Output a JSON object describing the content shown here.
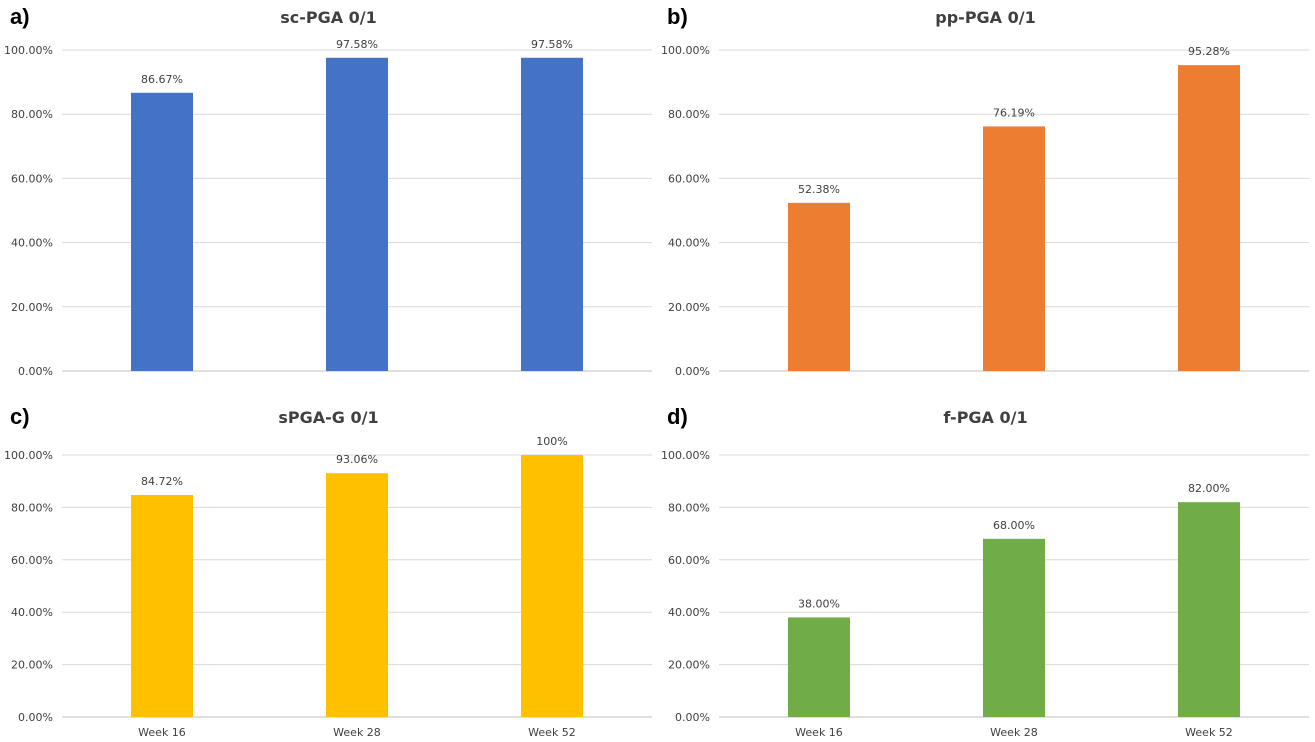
{
  "chart_data": [
    {
      "type": "bar",
      "panel_label": "a)",
      "title": "sc-PGA 0/1",
      "categories": [
        "Week 16",
        "Week 28",
        "Week 52"
      ],
      "values": [
        86.67,
        97.58,
        97.58
      ],
      "value_labels": [
        "86.67%",
        "97.58%",
        "97.58%"
      ],
      "yticks": [
        "0.00%",
        "20.00%",
        "40.00%",
        "60.00%",
        "80.00%",
        "100.00%"
      ],
      "ylim": [
        0,
        100
      ],
      "color": "#4472C4",
      "grid": true
    },
    {
      "type": "bar",
      "panel_label": "b)",
      "title": "pp-PGA 0/1",
      "categories": [
        "Week 16",
        "Week 28",
        "Week 52"
      ],
      "values": [
        52.38,
        76.19,
        95.28
      ],
      "value_labels": [
        "52.38%",
        "76.19%",
        "95.28%"
      ],
      "yticks": [
        "0.00%",
        "20.00%",
        "40.00%",
        "60.00%",
        "80.00%",
        "100.00%"
      ],
      "ylim": [
        0,
        100
      ],
      "color": "#ED7D31",
      "grid": true
    },
    {
      "type": "bar",
      "panel_label": "c)",
      "title": "sPGA-G 0/1",
      "categories": [
        "Week 16",
        "Week 28",
        "Week 52"
      ],
      "values": [
        84.72,
        93.06,
        100
      ],
      "value_labels": [
        "84.72%",
        "93.06%",
        "100%"
      ],
      "yticks": [
        "0.00%",
        "20.00%",
        "40.00%",
        "60.00%",
        "80.00%",
        "100.00%"
      ],
      "ylim": [
        0,
        100
      ],
      "color": "#FFC000",
      "grid": true
    },
    {
      "type": "bar",
      "panel_label": "d)",
      "title": "f-PGA 0/1",
      "categories": [
        "Week 16",
        "Week 28",
        "Week 52"
      ],
      "values": [
        38.0,
        68.0,
        82.0
      ],
      "value_labels": [
        "38.00%",
        "68.00%",
        "82.00%"
      ],
      "yticks": [
        "0.00%",
        "20.00%",
        "40.00%",
        "60.00%",
        "80.00%",
        "100.00%"
      ],
      "ylim": [
        0,
        100
      ],
      "color": "#70AD47",
      "grid": true
    }
  ]
}
